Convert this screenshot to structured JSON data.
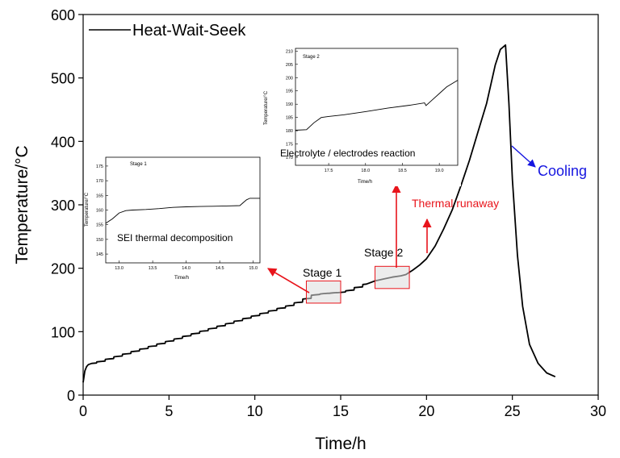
{
  "chart_data": {
    "type": "line",
    "title": "",
    "xlabel": "Time/h",
    "ylabel": "Temperature/°C",
    "xlim": [
      0,
      30
    ],
    "ylim": [
      0,
      600
    ],
    "xticks": [
      "0",
      "5",
      "10",
      "15",
      "20",
      "25",
      "30"
    ],
    "yticks": [
      "0",
      "100",
      "200",
      "300",
      "400",
      "500",
      "600"
    ],
    "legend": {
      "position": "top-left",
      "label": "Heat-Wait-Seek"
    },
    "grid": false,
    "series": [
      {
        "name": "Heat-Wait-Seek",
        "color": "#000000",
        "x": [
          0,
          0.1,
          0.2,
          0.3,
          0.5,
          1,
          1.5,
          2,
          2.5,
          3,
          3.5,
          4,
          4.5,
          5,
          5.5,
          6,
          6.5,
          7,
          7.5,
          8,
          8.5,
          9,
          9.5,
          10,
          10.5,
          11,
          11.5,
          12,
          12.5,
          13,
          13.5,
          14,
          14.5,
          15,
          15.5,
          16,
          16.5,
          17,
          17.5,
          18,
          18.5,
          18.8,
          19.2,
          19.6,
          20,
          20.5,
          21,
          21.5,
          22,
          22.5,
          23,
          23.5,
          24,
          24.3,
          24.6,
          24.8,
          25,
          25.3,
          25.6,
          26,
          26.5,
          27,
          27.5
        ],
        "y": [
          20,
          38,
          45,
          48,
          50,
          53,
          57,
          61,
          65,
          69,
          73,
          77,
          81,
          85,
          89,
          93,
          97,
          101,
          105,
          109,
          113,
          117,
          121,
          125,
          129,
          133,
          137,
          141,
          146,
          152,
          158,
          160,
          161,
          162,
          165,
          170,
          175,
          180,
          183,
          186,
          188,
          190,
          197,
          205,
          215,
          235,
          262,
          292,
          330,
          370,
          415,
          460,
          520,
          545,
          552,
          460,
          340,
          220,
          140,
          80,
          50,
          35,
          29
        ]
      }
    ],
    "annotations": {
      "stage1_label": "Stage 1",
      "stage2_label": "Stage 2",
      "thermal_runaway": "Thermal runaway",
      "cooling": "Cooling",
      "stage1_box": {
        "x": [
          13,
          15
        ],
        "y": [
          145,
          180
        ]
      },
      "stage2_box": {
        "x": [
          17,
          19
        ],
        "y": [
          168,
          203
        ]
      },
      "thermal_runaway_point": {
        "x": 19.9,
        "y": 222
      },
      "cooling_point": {
        "x": 24.9,
        "y": 395
      }
    },
    "insets": [
      {
        "id": "stage1",
        "stage_label": "Stage 1",
        "caption": "SEI thermal decomposition",
        "xlabel": "Time/h",
        "ylabel": "Temperature/°C",
        "xlim": [
          12.8,
          15.1
        ],
        "ylim": [
          142,
          178
        ],
        "xticks": [
          "13.0",
          "13.5",
          "14.0",
          "14.5",
          "15.0"
        ],
        "yticks": [
          "145",
          "150",
          "155",
          "160",
          "165",
          "170",
          "175"
        ],
        "x": [
          12.8,
          12.9,
          13.0,
          13.1,
          13.2,
          13.4,
          13.6,
          13.8,
          14.0,
          14.2,
          14.4,
          14.6,
          14.8,
          14.85,
          14.9,
          14.95,
          15.1
        ],
        "y": [
          155.5,
          157,
          159,
          159.8,
          160,
          160.2,
          160.5,
          160.9,
          161.1,
          161.2,
          161.3,
          161.4,
          161.5,
          162.5,
          163.5,
          164,
          164
        ]
      },
      {
        "id": "stage2",
        "stage_label": "Stage 2",
        "caption": "Electrolyte / electrodes reaction",
        "xlabel": "Time/h",
        "ylabel": "Temperature/°C",
        "xlim": [
          17.05,
          19.25
        ],
        "ylim": [
          167,
          211
        ],
        "xticks": [
          "17.5",
          "18.0",
          "18.5",
          "19.0"
        ],
        "yticks": [
          "170",
          "175",
          "180",
          "185",
          "190",
          "195",
          "200",
          "205",
          "210"
        ],
        "x": [
          17.05,
          17.2,
          17.3,
          17.4,
          17.5,
          17.7,
          18.0,
          18.3,
          18.6,
          18.8,
          18.82,
          18.9,
          19.0,
          19.1,
          19.25
        ],
        "y": [
          180.2,
          180.4,
          183,
          185,
          185.4,
          186,
          187.2,
          188.5,
          189.6,
          190.5,
          189.5,
          191.5,
          194,
          196.5,
          199
        ]
      }
    ]
  }
}
